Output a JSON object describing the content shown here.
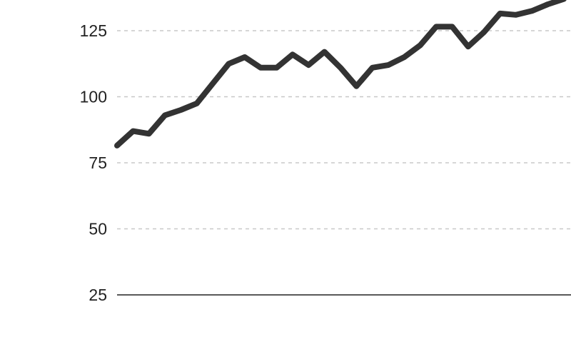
{
  "colors": {
    "line": "#333333",
    "grid": "#c8c8c8",
    "baseline": "#222222",
    "text": "#222222",
    "background": "#ffffff"
  },
  "chart_data": {
    "type": "line",
    "title": "",
    "xlabel": "",
    "ylabel": "",
    "ylim": [
      25,
      135
    ],
    "yticks": [
      25,
      50,
      75,
      100,
      125
    ],
    "ytick_labels": [
      "25",
      "50",
      "75",
      "100",
      "125"
    ],
    "grid": true,
    "legend": "none",
    "x": [
      1,
      2,
      3,
      4,
      5,
      6,
      7,
      8,
      9,
      10,
      11,
      12,
      13,
      14,
      15,
      16,
      17,
      18,
      19,
      20,
      21,
      22,
      23,
      24,
      25,
      26,
      27,
      28,
      29
    ],
    "series": [
      {
        "values": [
          81.5,
          87,
          86,
          93,
          95,
          97.5,
          105,
          112.5,
          115,
          111,
          111,
          116,
          112,
          117,
          111,
          104,
          111,
          112,
          115,
          119.5,
          126.5,
          126.5,
          119,
          124.5,
          131.5,
          131,
          132.5,
          135,
          137
        ]
      }
    ]
  }
}
